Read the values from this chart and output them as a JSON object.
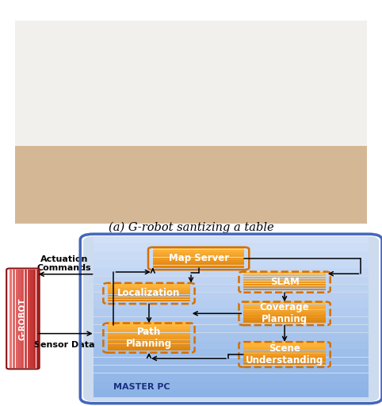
{
  "title_caption": "(a) G-robot santizing a table",
  "figure_bg": "#ffffff",
  "diagram_bg_top": "#c8d8f0",
  "diagram_bg_bot": "#8aaad8",
  "diagram_border": "#4466bb",
  "box_orange_fill": "#f5921e",
  "box_orange_edge": "#d47000",
  "grobot_fill_top": "#e06060",
  "grobot_fill_bot": "#bb2020",
  "grobot_text": "G-ROBOT",
  "master_pc_text": "MASTER PC",
  "label_actuation": "Actuation\nCommands",
  "label_sensor": "Sensor Data",
  "font_size_box": 8.5,
  "font_size_caption": 10.5,
  "font_size_master": 8,
  "font_size_grobot": 7.5,
  "font_size_label": 8
}
